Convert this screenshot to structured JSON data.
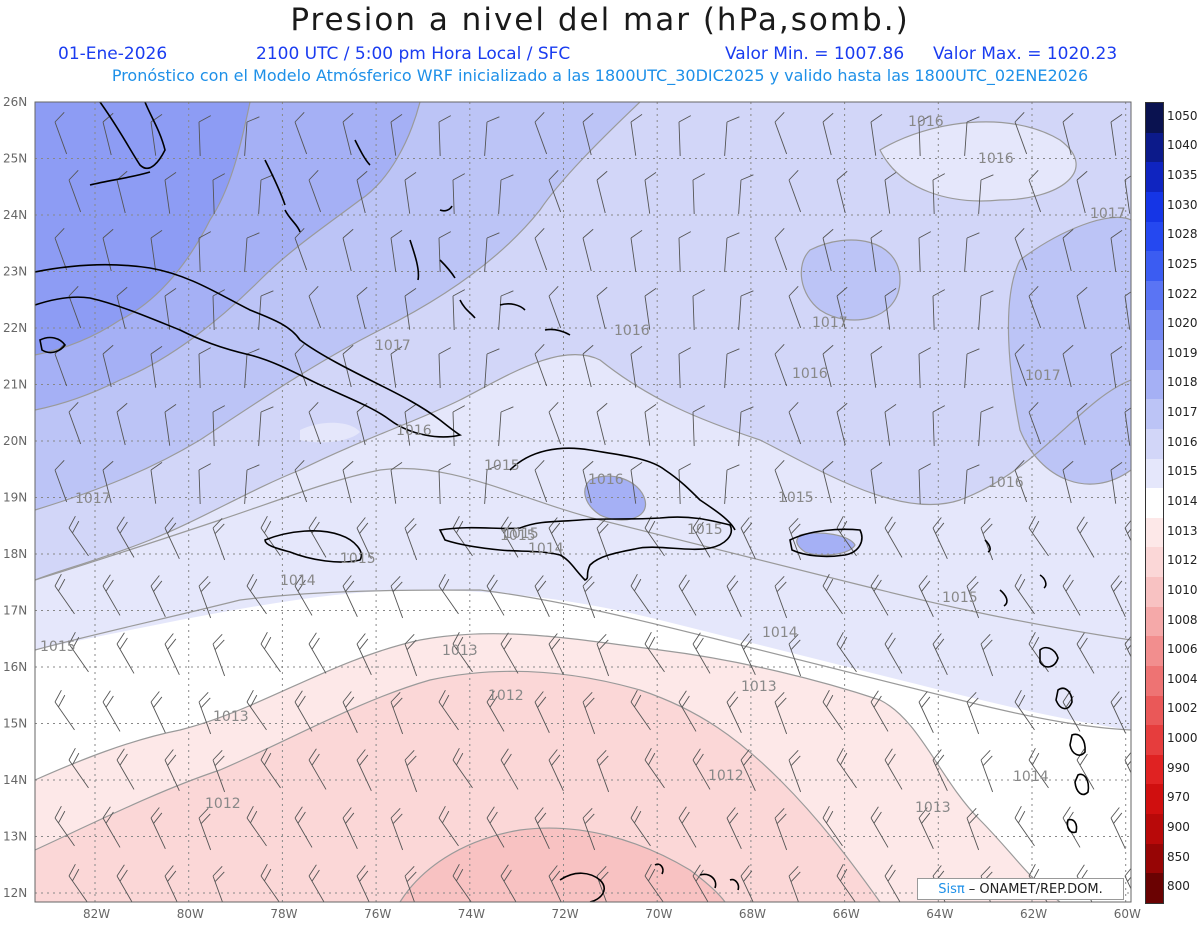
{
  "header": {
    "title": "Presion a nivel del mar (hPa,somb.)",
    "date": "01-Ene-2026",
    "time": "2100 UTC / 5:00 pm Hora Local / SFC",
    "vmin": "Valor Min. = 1007.86",
    "vmax": "Valor Max. = 1020.23",
    "forecast": "Pronóstico con el Modelo Atmósferico WRF inicializado a las 1800UTC_30DIC2025 y valido hasta las  1800UTC_02ENE2026"
  },
  "map": {
    "lat_labels": [
      "26N",
      "25N",
      "24N",
      "23N",
      "22N",
      "21N",
      "20N",
      "19N",
      "18N",
      "17N",
      "16N",
      "15N",
      "14N",
      "13N",
      "12N"
    ],
    "lon_labels": [
      "82W",
      "80W",
      "78W",
      "76W",
      "74W",
      "72W",
      "70W",
      "68W",
      "66W",
      "64W",
      "62W",
      "60W"
    ],
    "contour_labels": [
      {
        "text": "1016"
      },
      {
        "text": "1016"
      },
      {
        "text": "1017"
      },
      {
        "text": "1017"
      },
      {
        "text": "1016"
      },
      {
        "text": "1017"
      },
      {
        "text": "1016"
      },
      {
        "text": "1017"
      },
      {
        "text": "1016"
      },
      {
        "text": "1016"
      },
      {
        "text": "1015"
      },
      {
        "text": "1016"
      },
      {
        "text": "1015"
      },
      {
        "text": "1015"
      },
      {
        "text": "1014"
      },
      {
        "text": "1015"
      },
      {
        "text": "1015"
      },
      {
        "text": "1015"
      },
      {
        "text": "1017"
      },
      {
        "text": "1014"
      },
      {
        "text": "1015"
      },
      {
        "text": "1014"
      },
      {
        "text": "1013"
      },
      {
        "text": "1015"
      },
      {
        "text": "1012"
      },
      {
        "text": "1013"
      },
      {
        "text": "1013"
      },
      {
        "text": "1012"
      },
      {
        "text": "1012"
      },
      {
        "text": "1013"
      },
      {
        "text": "1014"
      }
    ]
  },
  "legend": {
    "levels": [
      {
        "label": "1050",
        "color": "#0a1250"
      },
      {
        "label": "1040",
        "color": "#0c1a8a"
      },
      {
        "label": "1035",
        "color": "#0f24c0"
      },
      {
        "label": "1030",
        "color": "#1535e6"
      },
      {
        "label": "1028",
        "color": "#2548f0"
      },
      {
        "label": "1025",
        "color": "#3b5cf2"
      },
      {
        "label": "1022",
        "color": "#5a74f4"
      },
      {
        "label": "1020",
        "color": "#7488f3"
      },
      {
        "label": "1019",
        "color": "#8d9cf4"
      },
      {
        "label": "1018",
        "color": "#a5b0f5"
      },
      {
        "label": "1017",
        "color": "#bcc4f6"
      },
      {
        "label": "1016",
        "color": "#d2d6f8"
      },
      {
        "label": "1015",
        "color": "#e5e7fb"
      },
      {
        "label": "1014",
        "color": "#ffffff"
      },
      {
        "label": "1013",
        "color": "#fde8e8"
      },
      {
        "label": "1012",
        "color": "#fbd7d7"
      },
      {
        "label": "1010",
        "color": "#f8c2c2"
      },
      {
        "label": "1008",
        "color": "#f5a9a9"
      },
      {
        "label": "1006",
        "color": "#f28e8e"
      },
      {
        "label": "1004",
        "color": "#ee7373"
      },
      {
        "label": "1002",
        "color": "#ea5858"
      },
      {
        "label": "1000",
        "color": "#e63d3d"
      },
      {
        "label": "990",
        "color": "#e02222"
      },
      {
        "label": "970",
        "color": "#d00f0f"
      },
      {
        "label": "900",
        "color": "#b80909"
      },
      {
        "label": "850",
        "color": "#970505"
      },
      {
        "label": "800",
        "color": "#6a0202"
      }
    ]
  },
  "credit": {
    "brand": "Sisπ",
    "org": "– ONAMET/REP.DOM."
  }
}
